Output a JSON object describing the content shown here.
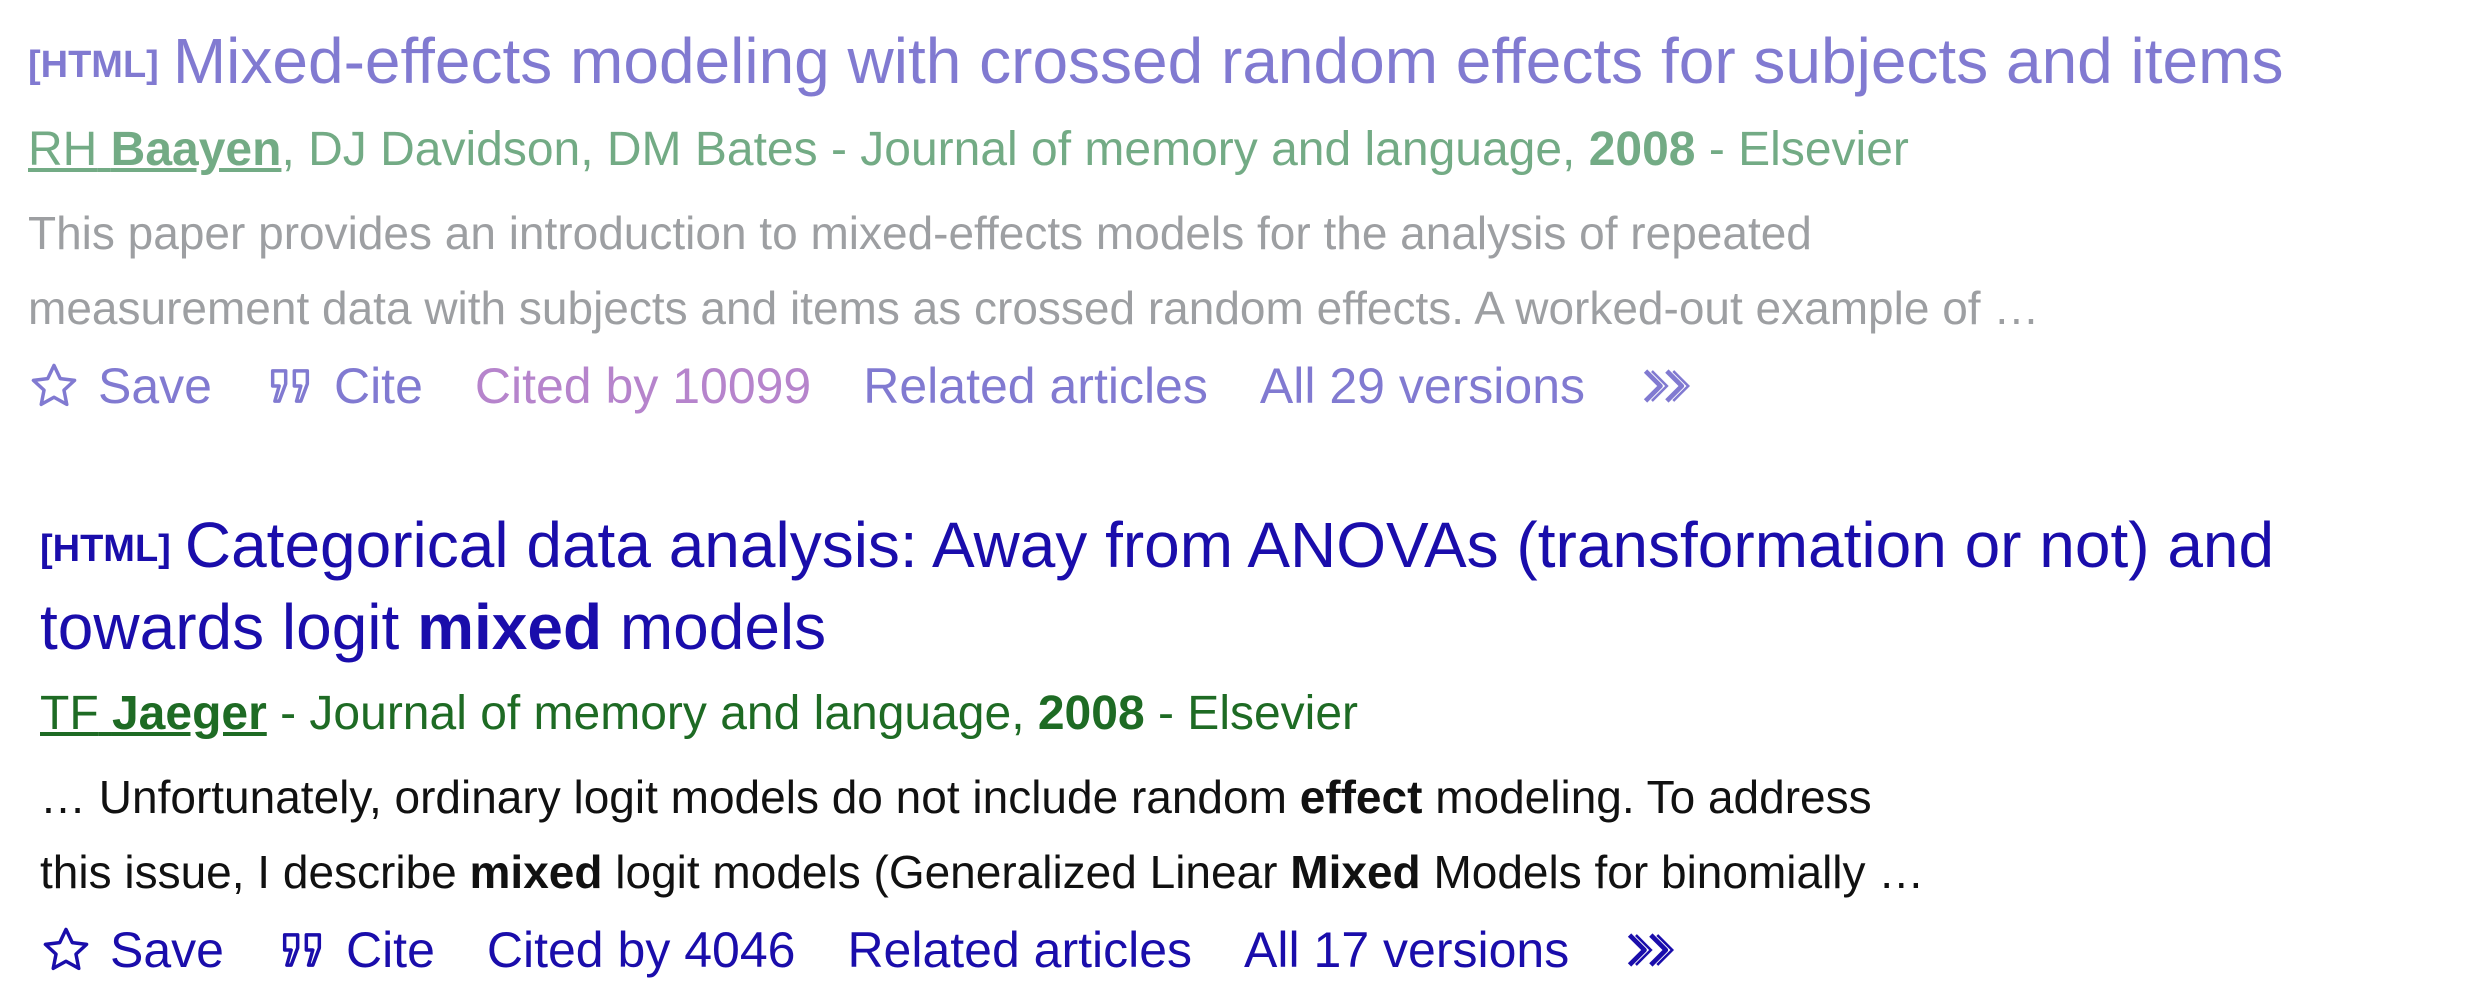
{
  "results": [
    {
      "tag": "[HTML]",
      "title": "Mixed-effects modeling with crossed random effects for subjects and items",
      "author_first_initials": "RH",
      "author_first_last": "Baayen",
      "authors_rest": ", DJ Davidson, DM Bates - Journal of memory and language, ",
      "year": "2008",
      "publisher": " - Elsevier",
      "snippet_line1": "This paper provides an introduction to mixed-effects models for the analysis of repeated",
      "snippet_line2": "measurement data with subjects and items as crossed random effects. A worked-out example of …",
      "save": "Save",
      "cite": "Cite",
      "cited_by": "Cited by 10099",
      "related": "Related articles",
      "versions": "All 29 versions"
    },
    {
      "tag": "[HTML]",
      "title_line1": "Categorical data analysis: Away from ANOVAs (transformation or not) and",
      "title_line2_pre": "towards logit ",
      "title_line2_bold": "mixed",
      "title_line2_post": " models",
      "author_first_initials": "TF",
      "author_first_last": "Jaeger",
      "authors_rest": " - Journal of memory and language, ",
      "year": "2008",
      "publisher": " - Elsevier",
      "snippet_line1_a": "… Unfortunately, ordinary logit models do not include random ",
      "snippet_line1_b": "effect",
      "snippet_line1_c": " modeling. To address",
      "snippet_line2_a": "this issue, I describe ",
      "snippet_line2_b": "mixed",
      "snippet_line2_c": " logit models (Generalized Linear ",
      "snippet_line2_d": "Mixed",
      "snippet_line2_e": " Models for binomially …",
      "save": "Save",
      "cite": "Cite",
      "cited_by": "Cited by 4046",
      "related": "Related articles",
      "versions": "All 17 versions"
    }
  ],
  "icons": {
    "save": "star-outline-icon",
    "cite": "quote-icon",
    "more": "double-chevron-right-icon"
  },
  "colors": {
    "link": "#1a0dab",
    "author_green": "#006621",
    "visited_cited": "#7b1fa2",
    "snippet": "#111111"
  }
}
